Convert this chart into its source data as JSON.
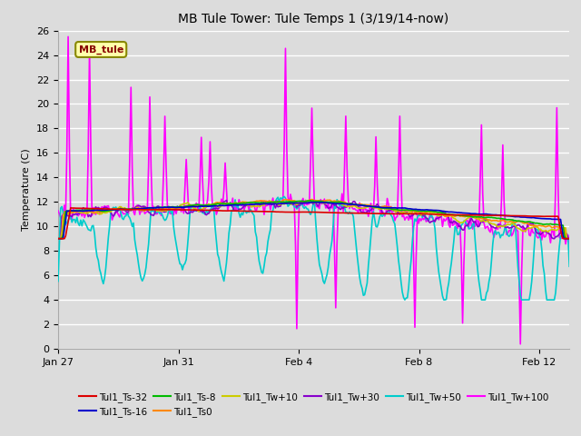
{
  "title": "MB Tule Tower: Tule Temps 1 (3/19/14-now)",
  "ylabel": "Temperature (C)",
  "ylim": [
    0,
    26
  ],
  "yticks": [
    0,
    2,
    4,
    6,
    8,
    10,
    12,
    14,
    16,
    18,
    20,
    22,
    24,
    26
  ],
  "bg_color": "#dcdcdc",
  "grid_color": "#ffffff",
  "series": {
    "Tul1_Ts-32": {
      "color": "#dd0000",
      "lw": 1.2,
      "zorder": 10
    },
    "Tul1_Ts-16": {
      "color": "#0000cc",
      "lw": 1.2,
      "zorder": 9
    },
    "Tul1_Ts-8": {
      "color": "#00bb00",
      "lw": 1.2,
      "zorder": 8
    },
    "Tul1_Ts0": {
      "color": "#ff8800",
      "lw": 1.2,
      "zorder": 7
    },
    "Tul1_Tw+10": {
      "color": "#cccc00",
      "lw": 1.2,
      "zorder": 6
    },
    "Tul1_Tw+30": {
      "color": "#8800cc",
      "lw": 1.2,
      "zorder": 5
    },
    "Tul1_Tw+50": {
      "color": "#00cccc",
      "lw": 1.2,
      "zorder": 4
    },
    "Tul1_Tw+100": {
      "color": "#ff00ff",
      "lw": 1.2,
      "zorder": 3
    }
  },
  "legend_label": "MB_tule",
  "xtick_labels": [
    "Jan 27",
    "Jan 31",
    "Feb 4",
    "Feb 8",
    "Feb 12"
  ],
  "legend_items": [
    [
      "Tul1_Ts-32",
      "#dd0000"
    ],
    [
      "Tul1_Ts-16",
      "#0000cc"
    ],
    [
      "Tul1_Ts-8",
      "#00bb00"
    ],
    [
      "Tul1_Ts0",
      "#ff8800"
    ],
    [
      "Tul1_Tw+10",
      "#cccc00"
    ],
    [
      "Tul1_Tw+30",
      "#8800cc"
    ],
    [
      "Tul1_Tw+50",
      "#00cccc"
    ],
    [
      "Tul1_Tw+100",
      "#ff00ff"
    ]
  ]
}
